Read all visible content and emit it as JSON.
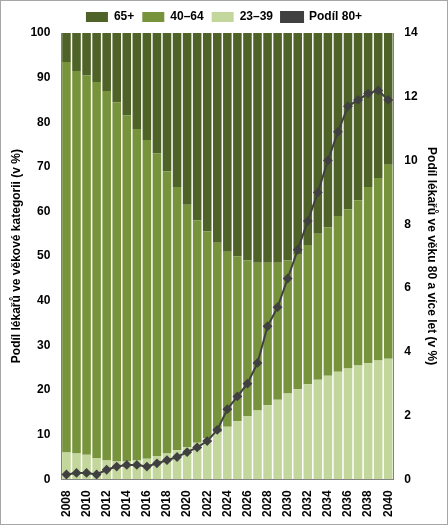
{
  "chart_data": {
    "type": "bar",
    "stacked": true,
    "grid": false,
    "legend": "top",
    "y_label": "Podíl lékařů ve věkové kategorii (v %)",
    "y2_label": "Podíl lékařů ve věku 80 a více let (v %)",
    "categories": [
      "2008",
      null,
      "2010",
      null,
      "2012",
      null,
      "2014",
      null,
      "2016",
      null,
      "2018",
      null,
      "2020",
      null,
      "2022",
      null,
      "2024",
      null,
      "2026",
      null,
      "2028",
      null,
      "2030",
      null,
      "2032",
      null,
      "2034",
      null,
      "2036",
      null,
      "2038",
      null,
      "2040"
    ],
    "ylim": [
      0,
      100
    ],
    "yticks": [
      0,
      10,
      20,
      30,
      40,
      50,
      60,
      70,
      80,
      90,
      100
    ],
    "y2lim": [
      0,
      14
    ],
    "y2ticks": [
      0,
      2,
      4,
      6,
      8,
      10,
      12,
      14
    ],
    "series": [
      {
        "name": "65+",
        "color": "#4f6228",
        "type": "bar",
        "values": [
          6.5,
          8.5,
          9.5,
          11,
          13,
          15.5,
          18.5,
          21.5,
          24,
          27,
          31,
          34.5,
          38.5,
          42,
          44.5,
          47,
          49,
          50,
          51,
          51.5,
          51.5,
          51.5,
          51,
          49.5,
          47.5,
          45,
          43.5,
          41,
          39.5,
          37.5,
          34.5,
          32.5,
          29.5
        ]
      },
      {
        "name": "40–64",
        "color": "#77933c",
        "type": "bar",
        "values": [
          87.5,
          85.7,
          85,
          84.2,
          82.8,
          80.5,
          77.5,
          74.3,
          71.4,
          67.8,
          63.2,
          59,
          54.3,
          49.8,
          46.3,
          42.5,
          39.2,
          37,
          34.8,
          33.1,
          31.9,
          30.7,
          29.8,
          30.3,
          31.2,
          32.7,
          33.3,
          34.9,
          35.7,
          37,
          39.5,
          40.9,
          43.5
        ]
      },
      {
        "name": "23–39",
        "color": "#c3d69b",
        "type": "bar",
        "values": [
          6,
          5.8,
          5.5,
          4.8,
          4.2,
          4,
          4,
          4.2,
          4.6,
          5.2,
          5.8,
          6.5,
          7.2,
          8.2,
          9.2,
          10.5,
          11.8,
          13,
          14.2,
          15.4,
          16.6,
          17.8,
          19.2,
          20.2,
          21.3,
          22.3,
          23.2,
          24.1,
          24.8,
          25.5,
          26,
          26.6,
          27
        ]
      },
      {
        "name": "Podíl 80+",
        "color": "#404040",
        "type": "line",
        "axis": "y2",
        "marker": "diamond",
        "line_style": "solid",
        "values": [
          0.15,
          0.2,
          0.2,
          0.15,
          0.3,
          0.4,
          0.45,
          0.45,
          0.4,
          0.5,
          0.6,
          0.7,
          0.85,
          1.0,
          1.2,
          1.55,
          2.2,
          2.6,
          3.0,
          3.65,
          4.8,
          5.4,
          6.3,
          7.2,
          8.1,
          9.0,
          10.0,
          10.9,
          11.7,
          11.9,
          12.1,
          12.2,
          11.9
        ]
      }
    ]
  }
}
